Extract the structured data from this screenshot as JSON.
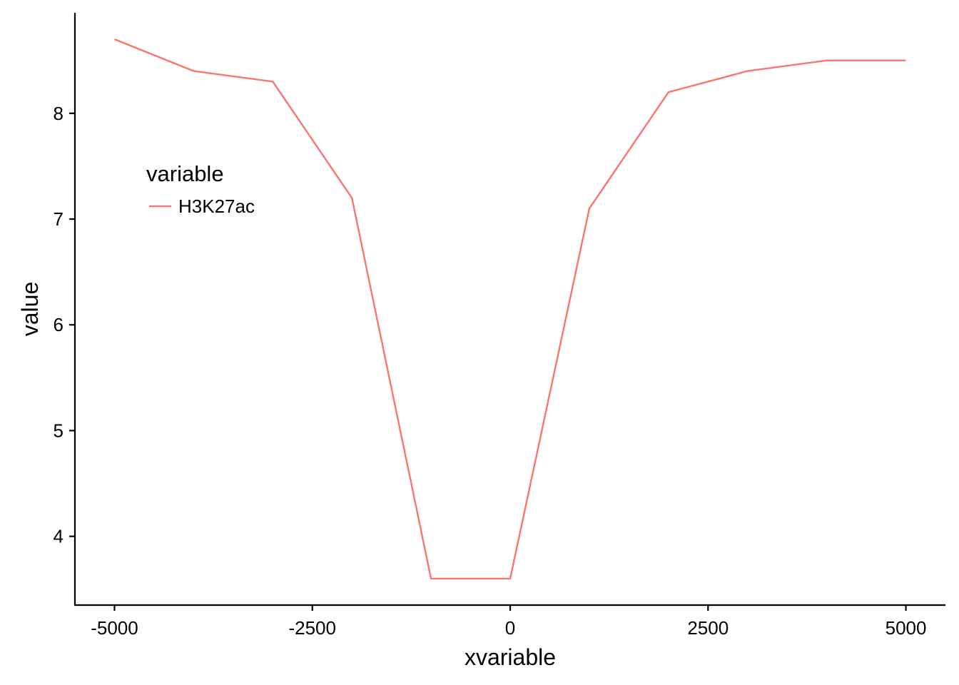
{
  "chart_data": {
    "type": "line",
    "title": "",
    "xlabel": "xvariable",
    "ylabel": "value",
    "x": [
      -5000,
      -4000,
      -3000,
      -2000,
      -1000,
      0,
      1000,
      2000,
      3000,
      4000,
      5000
    ],
    "series": [
      {
        "name": "H3K27ac",
        "color": "#F8766D",
        "values": [
          8.7,
          8.4,
          8.3,
          7.2,
          3.6,
          3.6,
          7.1,
          8.2,
          8.4,
          8.5,
          8.5
        ]
      }
    ],
    "xticks": [
      -5000,
      -2500,
      0,
      2500,
      5000
    ],
    "xtick_labels": [
      "-5000",
      "-2500",
      "0",
      "2500",
      "5000"
    ],
    "yticks": [
      4,
      5,
      6,
      7,
      8
    ],
    "ytick_labels": [
      "4",
      "5",
      "6",
      "7",
      "8"
    ],
    "xlim": [
      -5500,
      5500
    ],
    "ylim": [
      3.35,
      8.95
    ],
    "grid": false,
    "legend": {
      "title": "variable",
      "placement": "inside-top-left"
    }
  }
}
